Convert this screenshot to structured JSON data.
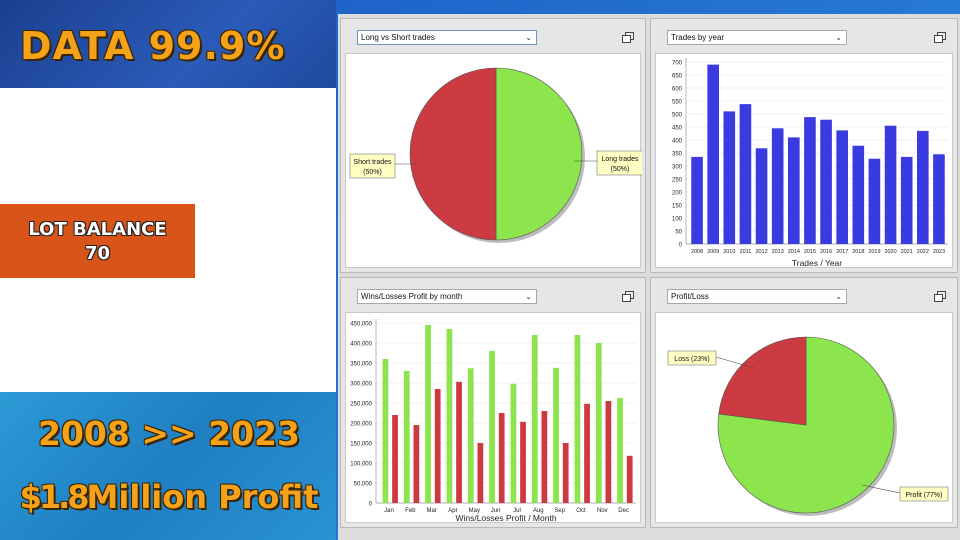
{
  "promo": {
    "headline": "DATA 99.9%",
    "lot_line1": "LOT BALANCE",
    "lot_line2": "70",
    "years": "2008 >> 2023",
    "profit_amount": "$1.8",
    "profit_rest": "Million Profit"
  },
  "colors": {
    "green": "#8ce54c",
    "red": "#cb3b41",
    "blue": "#3a3ae0",
    "callout": "#ffffc4"
  },
  "panels": {
    "long_short": {
      "selector": "Long vs Short trades"
    },
    "trades_year": {
      "selector": "Trades by year"
    },
    "wins_losses": {
      "selector": "Wins/Losses Profit by month"
    },
    "profit_loss": {
      "selector": "Profit/Loss"
    }
  },
  "chart_data": [
    {
      "id": "long_short",
      "type": "pie",
      "slices": [
        {
          "label": "Long trades",
          "pct_label": "(50%)",
          "value": 50,
          "color": "#8ce54c"
        },
        {
          "label": "Short trades",
          "pct_label": "(50%)",
          "value": 50,
          "color": "#cb3b41"
        }
      ]
    },
    {
      "id": "trades_year",
      "type": "bar",
      "xlabel": "Trades / Year",
      "ylim": [
        0,
        700
      ],
      "yticks": [
        0,
        50,
        100,
        150,
        200,
        250,
        300,
        350,
        400,
        450,
        500,
        550,
        600,
        650,
        700
      ],
      "categories": [
        "2008",
        "2009",
        "2010",
        "2011",
        "2012",
        "2013",
        "2014",
        "2015",
        "2016",
        "2017",
        "2018",
        "2019",
        "2020",
        "2021",
        "2022",
        "2023"
      ],
      "values": [
        335,
        690,
        510,
        538,
        368,
        445,
        410,
        488,
        478,
        437,
        378,
        328,
        455,
        335,
        435,
        345
      ]
    },
    {
      "id": "wins_losses",
      "type": "bar",
      "xlabel": "Wins/Losses Profit / Month",
      "ylim": [
        0,
        450000
      ],
      "yticks": [
        "0",
        "50,000",
        "100,000",
        "150,000",
        "200,000",
        "250,000",
        "300,000",
        "350,000",
        "400,000",
        "450,000"
      ],
      "categories": [
        "Jan",
        "Feb",
        "Mar",
        "Apr",
        "May",
        "Jun",
        "Jul",
        "Aug",
        "Sep",
        "Oct",
        "Nov",
        "Dec"
      ],
      "series": [
        {
          "values": [
            360000,
            330000,
            445000,
            435000,
            337000,
            380000,
            298000,
            420000,
            338000,
            420000,
            400000,
            263000
          ],
          "color": "#8ce54c"
        },
        {
          "values": [
            220000,
            195000,
            285000,
            303000,
            150000,
            225000,
            203000,
            230000,
            150000,
            248000,
            255000,
            118000
          ],
          "color": "#cb3b41"
        }
      ]
    },
    {
      "id": "profit_loss",
      "type": "pie",
      "slices": [
        {
          "label": "Profit (77%)",
          "value": 77,
          "color": "#8ce54c"
        },
        {
          "label": "Loss (23%)",
          "value": 23,
          "color": "#cb3b41"
        }
      ]
    }
  ]
}
